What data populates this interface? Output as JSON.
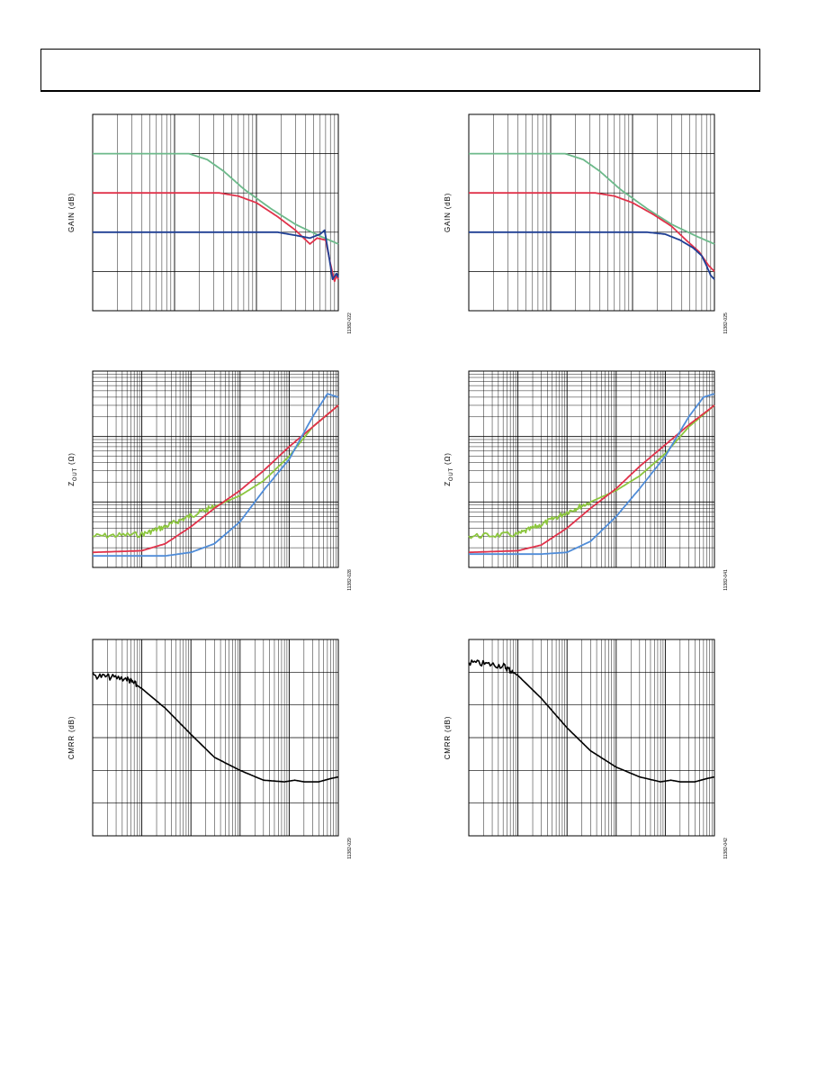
{
  "colors": {
    "teal": "#6cb98a",
    "red": "#e0324a",
    "navy": "#1f3f94",
    "green": "#8cc63e",
    "orange": "#e0862e",
    "blue": "#4f8cd8",
    "black": "#000000"
  },
  "charts": [
    {
      "id": "gain-left",
      "ylabel": "GAIN (dB)",
      "fig_id": "11382-022",
      "chart_data": {
        "type": "line",
        "x_scale": "log",
        "xlim": [
          1,
          1000
        ],
        "ylim": [
          0,
          5
        ],
        "grid": true,
        "series": [
          {
            "color_key": "teal",
            "points": [
              [
                1,
                4
              ],
              [
                15,
                4
              ],
              [
                25,
                3.85
              ],
              [
                40,
                3.55
              ],
              [
                70,
                3.1
              ],
              [
                150,
                2.6
              ],
              [
                300,
                2.2
              ],
              [
                600,
                1.9
              ],
              [
                1000,
                1.7
              ]
            ]
          },
          {
            "color_key": "red",
            "points": [
              [
                1,
                3
              ],
              [
                35,
                3
              ],
              [
                60,
                2.92
              ],
              [
                100,
                2.75
              ],
              [
                180,
                2.4
              ],
              [
                300,
                2.05
              ],
              [
                450,
                1.7
              ],
              [
                550,
                1.85
              ],
              [
                700,
                1.8
              ],
              [
                800,
                1.2
              ],
              [
                900,
                0.75
              ],
              [
                950,
                0.9
              ],
              [
                1000,
                0.8
              ]
            ]
          },
          {
            "color_key": "navy",
            "points": [
              [
                1,
                2
              ],
              [
                180,
                2
              ],
              [
                300,
                1.92
              ],
              [
                450,
                1.85
              ],
              [
                600,
                1.95
              ],
              [
                680,
                2.05
              ],
              [
                780,
                1.3
              ],
              [
                850,
                0.8
              ],
              [
                950,
                0.95
              ],
              [
                1000,
                0.85
              ]
            ]
          }
        ]
      }
    },
    {
      "id": "gain-right",
      "ylabel": "GAIN (dB)",
      "fig_id": "11382-025",
      "chart_data": {
        "type": "line",
        "x_scale": "log",
        "xlim": [
          1,
          1000
        ],
        "ylim": [
          0,
          5
        ],
        "grid": true,
        "series": [
          {
            "color_key": "teal",
            "points": [
              [
                1,
                4
              ],
              [
                15,
                4
              ],
              [
                25,
                3.85
              ],
              [
                40,
                3.55
              ],
              [
                70,
                3.1
              ],
              [
                150,
                2.6
              ],
              [
                300,
                2.2
              ],
              [
                600,
                1.9
              ],
              [
                1000,
                1.7
              ]
            ]
          },
          {
            "color_key": "red",
            "points": [
              [
                1,
                3
              ],
              [
                35,
                3
              ],
              [
                60,
                2.92
              ],
              [
                100,
                2.75
              ],
              [
                180,
                2.45
              ],
              [
                300,
                2.15
              ],
              [
                450,
                1.8
              ],
              [
                650,
                1.5
              ],
              [
                850,
                1.15
              ],
              [
                1000,
                1.0
              ]
            ]
          },
          {
            "color_key": "navy",
            "points": [
              [
                1,
                2
              ],
              [
                150,
                2
              ],
              [
                250,
                1.95
              ],
              [
                380,
                1.8
              ],
              [
                550,
                1.6
              ],
              [
                700,
                1.4
              ],
              [
                800,
                1.15
              ],
              [
                900,
                0.9
              ],
              [
                1000,
                0.8
              ]
            ]
          }
        ]
      }
    },
    {
      "id": "zout-left",
      "ylabel_main": "Z",
      "ylabel_sub": "OUT",
      "ylabel_unit": " (Ω)",
      "fig_id": "11382-028",
      "chart_data": {
        "type": "line",
        "x_scale": "log",
        "y_scale": "log",
        "xlim": [
          1,
          100000
        ],
        "ylim": [
          0.1,
          100
        ],
        "grid": true,
        "series": [
          {
            "color_key": "green",
            "noisy": true,
            "points": [
              [
                1,
                0.3
              ],
              [
                10,
                0.32
              ],
              [
                30,
                0.42
              ],
              [
                100,
                0.62
              ],
              [
                300,
                0.85
              ],
              [
                1000,
                1.25
              ],
              [
                3000,
                2.1
              ],
              [
                10000,
                5.0
              ],
              [
                30000,
                14
              ],
              [
                100000,
                30
              ]
            ]
          },
          {
            "color_key": "red",
            "points": [
              [
                1,
                0.17
              ],
              [
                10,
                0.18
              ],
              [
                30,
                0.23
              ],
              [
                100,
                0.42
              ],
              [
                300,
                0.8
              ],
              [
                1000,
                1.5
              ],
              [
                3000,
                3.0
              ],
              [
                10000,
                7
              ],
              [
                30000,
                14
              ],
              [
                100000,
                30
              ]
            ]
          },
          {
            "color_key": "blue",
            "points": [
              [
                1,
                0.15
              ],
              [
                30,
                0.15
              ],
              [
                100,
                0.17
              ],
              [
                300,
                0.23
              ],
              [
                1000,
                0.5
              ],
              [
                3000,
                1.5
              ],
              [
                10000,
                4.5
              ],
              [
                30000,
                20
              ],
              [
                60000,
                45
              ],
              [
                100000,
                40
              ]
            ]
          }
        ]
      }
    },
    {
      "id": "zout-right",
      "ylabel_main": "Z",
      "ylabel_sub": "OUT",
      "ylabel_unit": " (Ω)",
      "fig_id": "11382-041",
      "chart_data": {
        "type": "line",
        "x_scale": "log",
        "y_scale": "log",
        "xlim": [
          1,
          100000
        ],
        "ylim": [
          0.1,
          100
        ],
        "grid": true,
        "series": [
          {
            "color_key": "green",
            "noisy": true,
            "points": [
              [
                1,
                0.3
              ],
              [
                10,
                0.32
              ],
              [
                30,
                0.45
              ],
              [
                100,
                0.7
              ],
              [
                300,
                1.0
              ],
              [
                1000,
                1.5
              ],
              [
                3000,
                2.5
              ],
              [
                10000,
                5.5
              ],
              [
                30000,
                14
              ],
              [
                100000,
                30
              ]
            ]
          },
          {
            "color_key": "red",
            "points": [
              [
                1,
                0.17
              ],
              [
                10,
                0.18
              ],
              [
                30,
                0.22
              ],
              [
                100,
                0.4
              ],
              [
                300,
                0.8
              ],
              [
                1000,
                1.6
              ],
              [
                3000,
                3.5
              ],
              [
                10000,
                7.5
              ],
              [
                30000,
                15
              ],
              [
                100000,
                30
              ]
            ]
          },
          {
            "color_key": "blue",
            "points": [
              [
                1,
                0.16
              ],
              [
                30,
                0.16
              ],
              [
                100,
                0.17
              ],
              [
                300,
                0.25
              ],
              [
                1000,
                0.6
              ],
              [
                3000,
                1.6
              ],
              [
                10000,
                5
              ],
              [
                30000,
                20
              ],
              [
                60000,
                40
              ],
              [
                100000,
                45
              ]
            ]
          }
        ]
      }
    },
    {
      "id": "cmrr-left",
      "ylabel": "CMRR (dB)",
      "fig_id": "11382-029",
      "chart_data": {
        "type": "line",
        "x_scale": "log",
        "xlim": [
          1,
          100000
        ],
        "ylim": [
          0,
          6
        ],
        "grid": true,
        "series": [
          {
            "color_key": "black",
            "noisy_until": 8,
            "points": [
              [
                1,
                4.9
              ],
              [
                5,
                4.8
              ],
              [
                10,
                4.5
              ],
              [
                30,
                3.9
              ],
              [
                100,
                3.1
              ],
              [
                300,
                2.4
              ],
              [
                1000,
                2.0
              ],
              [
                3000,
                1.7
              ],
              [
                8000,
                1.65
              ],
              [
                13000,
                1.7
              ],
              [
                20000,
                1.65
              ],
              [
                40000,
                1.65
              ],
              [
                70000,
                1.75
              ],
              [
                100000,
                1.8
              ]
            ]
          }
        ]
      }
    },
    {
      "id": "cmrr-right",
      "ylabel": "CMRR (dB)",
      "fig_id": "11382-042",
      "chart_data": {
        "type": "line",
        "x_scale": "log",
        "xlim": [
          1,
          100000
        ],
        "ylim": [
          0,
          6
        ],
        "grid": true,
        "series": [
          {
            "color_key": "black",
            "noisy_until": 8,
            "points": [
              [
                1,
                5.3
              ],
              [
                5,
                5.2
              ],
              [
                10,
                4.9
              ],
              [
                30,
                4.2
              ],
              [
                100,
                3.3
              ],
              [
                300,
                2.6
              ],
              [
                1000,
                2.1
              ],
              [
                3000,
                1.8
              ],
              [
                8000,
                1.65
              ],
              [
                13000,
                1.7
              ],
              [
                20000,
                1.65
              ],
              [
                40000,
                1.65
              ],
              [
                70000,
                1.75
              ],
              [
                100000,
                1.8
              ]
            ]
          }
        ]
      }
    }
  ]
}
